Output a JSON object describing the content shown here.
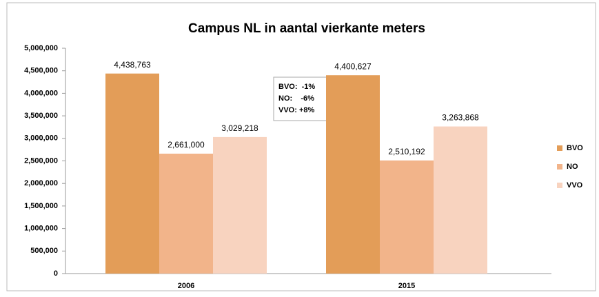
{
  "chart_data": {
    "type": "bar",
    "title": "Campus NL in aantal vierkante meters",
    "categories": [
      "2006",
      "2015"
    ],
    "series": [
      {
        "name": "BVO",
        "color": "#e39d58",
        "values": [
          4438763,
          4400627
        ],
        "value_labels": [
          "4,438,763",
          "4,400,627"
        ]
      },
      {
        "name": "NO",
        "color": "#f2b48a",
        "values": [
          2661000,
          2510192
        ],
        "value_labels": [
          "2,661,000",
          "2,510,192"
        ]
      },
      {
        "name": "VVO",
        "color": "#f8d3bf",
        "values": [
          3029218,
          3263868
        ],
        "value_labels": [
          "3,029,218",
          "3,263,868"
        ]
      }
    ],
    "ylim": [
      0,
      5000000
    ],
    "yticks": [
      0,
      {
        "value": 500000,
        "label": "500,000"
      },
      {
        "value": 1000000,
        "label": "1,000,000"
      },
      {
        "value": 1500000,
        "label": "1,500,000"
      },
      {
        "value": 2000000,
        "label": "2,000,000"
      },
      {
        "value": 2500000,
        "label": "2,500,000"
      },
      {
        "value": 3000000,
        "label": "3,000,000"
      },
      {
        "value": 3500000,
        "label": "3,500,000"
      },
      {
        "value": 4000000,
        "label": "4,000,000"
      },
      {
        "value": 4500000,
        "label": "4,500,000"
      },
      {
        "value": 5000000,
        "label": "5,000,000"
      }
    ],
    "grid": false,
    "legend": "right",
    "annotation": [
      "BVO:  -1%",
      "NO:    -6%",
      "VVO: +8%"
    ]
  }
}
